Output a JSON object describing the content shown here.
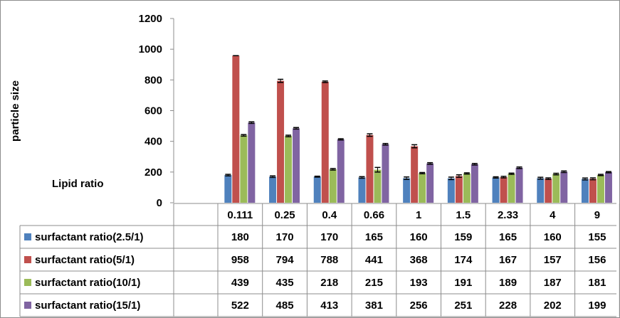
{
  "chart_data": {
    "type": "bar",
    "ylabel": "particle size",
    "xlabel": "Lipid ratio",
    "ylim": [
      0,
      1200
    ],
    "yticks": [
      0,
      200,
      400,
      600,
      800,
      1000,
      1200
    ],
    "grid": false,
    "legend": "data-table",
    "categories": [
      "0.111",
      "0.25",
      "0.4",
      "0.66",
      "1",
      "1.5",
      "2.33",
      "4",
      "9"
    ],
    "series": [
      {
        "name": "surfactant ratio(2.5/1)",
        "color": "#4f81bd",
        "values": [
          180,
          170,
          170,
          165,
          160,
          159,
          165,
          160,
          155
        ],
        "errors": [
          5,
          5,
          3,
          5,
          8,
          8,
          4,
          6,
          6
        ]
      },
      {
        "name": "surfactant ratio(5/1)",
        "color": "#c0504d",
        "values": [
          958,
          794,
          788,
          441,
          368,
          174,
          167,
          157,
          156
        ],
        "errors": [
          0,
          10,
          5,
          8,
          10,
          8,
          5,
          5,
          6
        ]
      },
      {
        "name": "surfactant ratio(10/1)",
        "color": "#9bbb59",
        "values": [
          439,
          435,
          218,
          215,
          193,
          191,
          189,
          187,
          181
        ],
        "errors": [
          5,
          5,
          5,
          15,
          4,
          4,
          4,
          5,
          4
        ]
      },
      {
        "name": "surfactant ratio(15/1)",
        "color": "#8064a2",
        "values": [
          522,
          485,
          413,
          381,
          256,
          251,
          228,
          202,
          199
        ],
        "errors": [
          5,
          5,
          4,
          5,
          5,
          5,
          5,
          5,
          4
        ]
      }
    ]
  }
}
